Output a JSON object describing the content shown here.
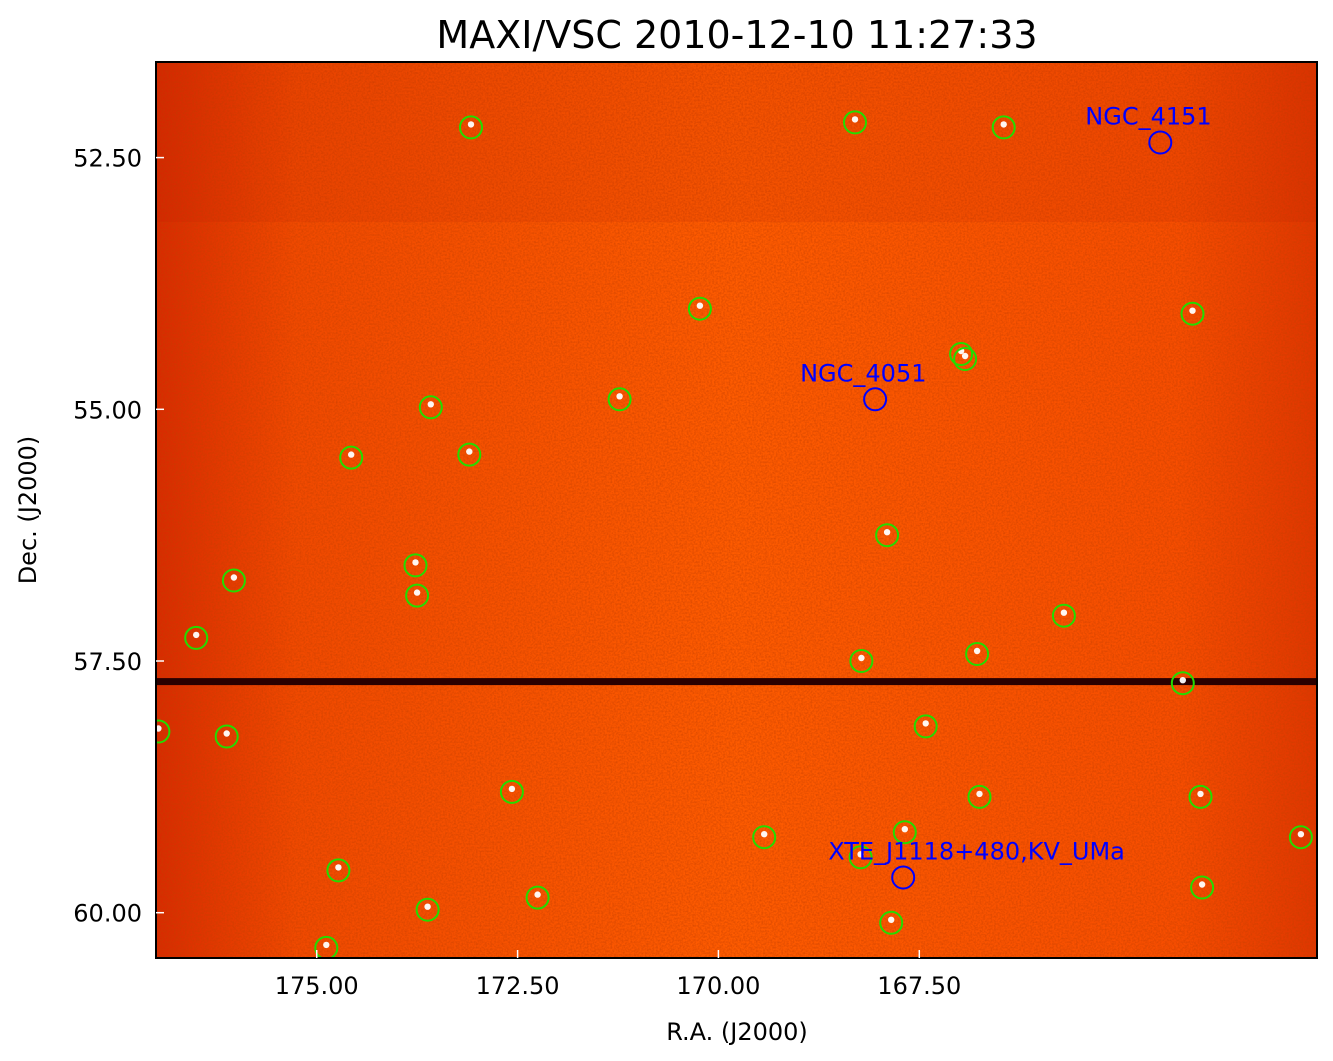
{
  "chart_data": {
    "type": "image",
    "title": "MAXI/VSC 2010-12-10 11:27:33",
    "xlabel": "R.A. (J2000)",
    "ylabel": "Dec. (J2000)",
    "xlim": [
      177.0,
      162.55
    ],
    "ylim": [
      60.45,
      51.55
    ],
    "xaxis_inverted": true,
    "x_ticks": [
      175.0,
      172.5,
      170.0,
      167.5
    ],
    "x_tick_labels": [
      "175.00",
      "172.50",
      "170.00",
      "167.50"
    ],
    "y_ticks": [
      52.5,
      55.0,
      57.5,
      60.0
    ],
    "y_tick_labels": [
      "52.50",
      "55.00",
      "57.50",
      "60.00"
    ],
    "colormap": "red-orange-white heat",
    "colors": {
      "background_dark": "#c01800",
      "background_mid": "#ff5a00",
      "bright": "#ffffff",
      "detected_circle": "#22dd00",
      "catalog_circle": "#0000ff",
      "dark_stripe": "#2a0000"
    },
    "dark_stripe_dec": 57.7,
    "named_sources": [
      {
        "name": "NGC_4151",
        "ra": 164.5,
        "dec": 52.35
      },
      {
        "name": "NGC_4051",
        "ra": 168.05,
        "dec": 54.9
      },
      {
        "name": "XTE_J1118+480,KV_UMa",
        "ra": 167.7,
        "dec": 59.65
      }
    ],
    "detected_sources": [
      {
        "ra": 173.08,
        "dec": 52.2
      },
      {
        "ra": 168.3,
        "dec": 52.15
      },
      {
        "ra": 166.45,
        "dec": 52.2
      },
      {
        "ra": 170.23,
        "dec": 54.0
      },
      {
        "ra": 164.1,
        "dec": 54.05
      },
      {
        "ra": 166.98,
        "dec": 54.45
      },
      {
        "ra": 166.93,
        "dec": 54.5
      },
      {
        "ra": 171.23,
        "dec": 54.9
      },
      {
        "ra": 173.58,
        "dec": 54.98
      },
      {
        "ra": 174.57,
        "dec": 55.48
      },
      {
        "ra": 173.1,
        "dec": 55.45
      },
      {
        "ra": 167.9,
        "dec": 56.25
      },
      {
        "ra": 173.77,
        "dec": 56.55
      },
      {
        "ra": 173.75,
        "dec": 56.85
      },
      {
        "ra": 176.03,
        "dec": 56.7
      },
      {
        "ra": 176.5,
        "dec": 57.27
      },
      {
        "ra": 165.7,
        "dec": 57.05
      },
      {
        "ra": 168.22,
        "dec": 57.5
      },
      {
        "ra": 166.78,
        "dec": 57.43
      },
      {
        "ra": 164.22,
        "dec": 57.72
      },
      {
        "ra": 176.97,
        "dec": 58.2
      },
      {
        "ra": 176.12,
        "dec": 58.25
      },
      {
        "ra": 167.42,
        "dec": 58.15
      },
      {
        "ra": 172.57,
        "dec": 58.8
      },
      {
        "ra": 166.75,
        "dec": 58.85
      },
      {
        "ra": 164.0,
        "dec": 58.85
      },
      {
        "ra": 167.68,
        "dec": 59.2
      },
      {
        "ra": 169.43,
        "dec": 59.25
      },
      {
        "ra": 168.23,
        "dec": 59.45
      },
      {
        "ra": 174.73,
        "dec": 59.58
      },
      {
        "ra": 173.62,
        "dec": 59.97
      },
      {
        "ra": 162.75,
        "dec": 59.25
      },
      {
        "ra": 163.98,
        "dec": 59.75
      },
      {
        "ra": 172.25,
        "dec": 59.85
      },
      {
        "ra": 167.85,
        "dec": 60.1
      },
      {
        "ra": 174.88,
        "dec": 60.35
      }
    ]
  }
}
